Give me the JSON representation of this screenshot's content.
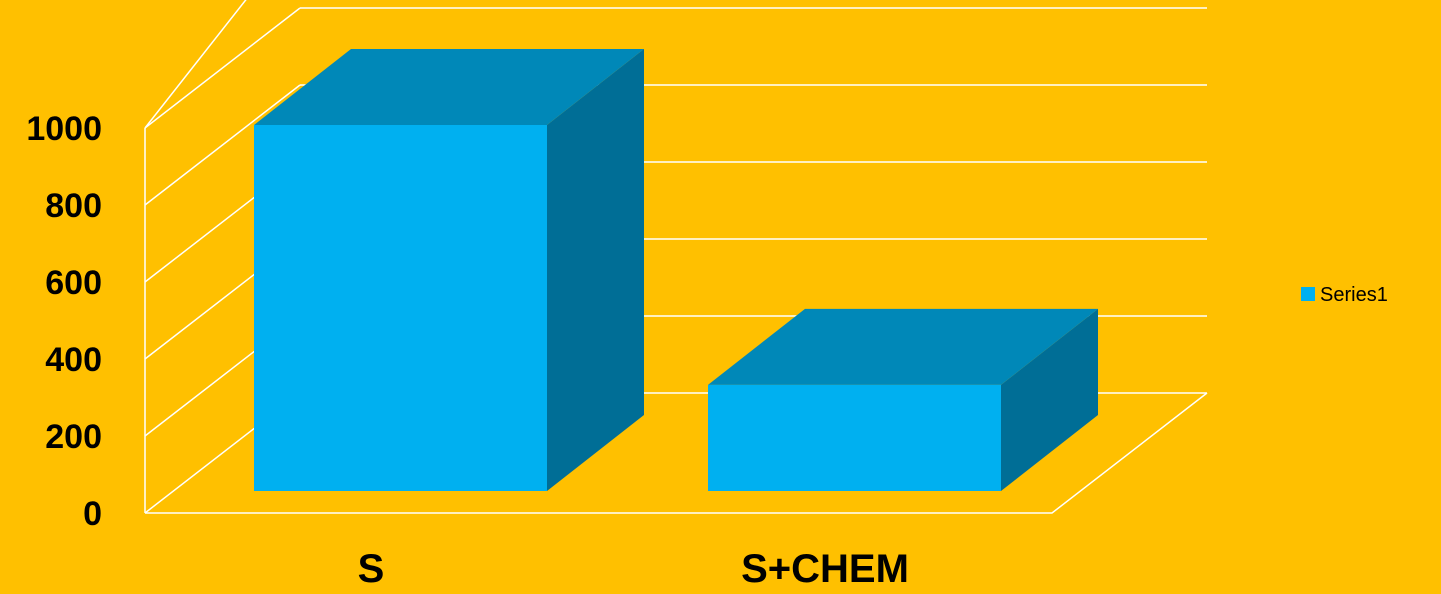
{
  "chart_data": {
    "type": "bar",
    "title": "",
    "xlabel": "",
    "ylabel": "",
    "categories": [
      "S",
      "S+CHEM"
    ],
    "series": [
      {
        "name": "Series1",
        "values": [
          1000,
          290
        ]
      }
    ],
    "ylim": [
      0,
      1000
    ],
    "yticks": [
      0,
      200,
      400,
      600,
      800,
      1000
    ],
    "ytick_labels": [
      "0",
      "200",
      "400",
      "600",
      "800",
      "1000"
    ],
    "grid": true,
    "three_d": true,
    "legend_position": "right"
  },
  "colors": {
    "background": "#FFC000",
    "bar_front": "#00B0F0",
    "bar_top": "#0088B8",
    "bar_side": "#006E96",
    "gridline": "#FFFFFF",
    "text": "#000000"
  }
}
